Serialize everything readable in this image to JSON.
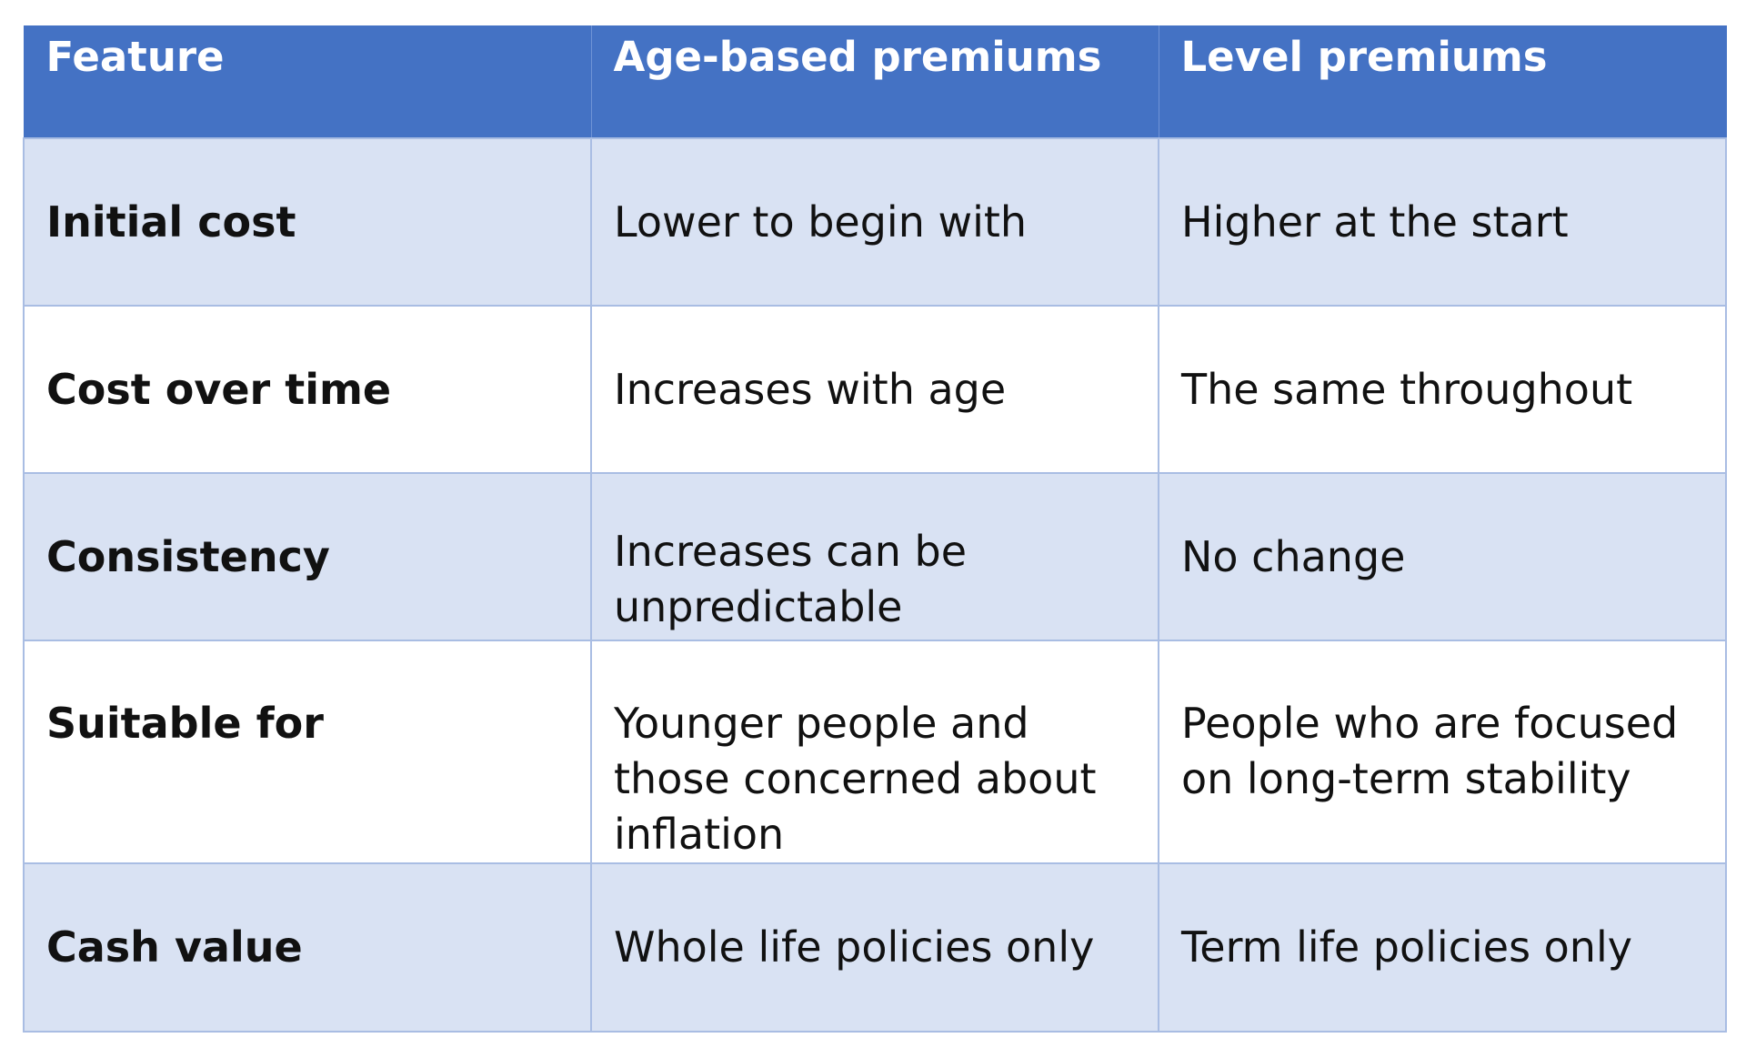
{
  "table": {
    "headers": [
      "Feature",
      "Age-based premiums",
      "Level premiums"
    ],
    "rows": [
      {
        "feature": "Initial cost",
        "age_based": "Lower to begin with",
        "level": "Higher at the start"
      },
      {
        "feature": "Cost over time",
        "age_based": "Increases with age",
        "level": "The same throughout"
      },
      {
        "feature": "Consistency",
        "age_based": "Increases can be unpredictable",
        "level": "No change"
      },
      {
        "feature": "Suitable for",
        "age_based": "Younger people and those concerned about inflation",
        "level": "People who are focused on long-term stability"
      },
      {
        "feature": "Cash value",
        "age_based": "Whole life policies only",
        "level": "Term life policies only"
      }
    ]
  },
  "colors": {
    "header_bg": "#4472c4",
    "row_alt_bg": "#d9e2f3",
    "row_bg": "#ffffff",
    "border": "#a9bde3"
  }
}
